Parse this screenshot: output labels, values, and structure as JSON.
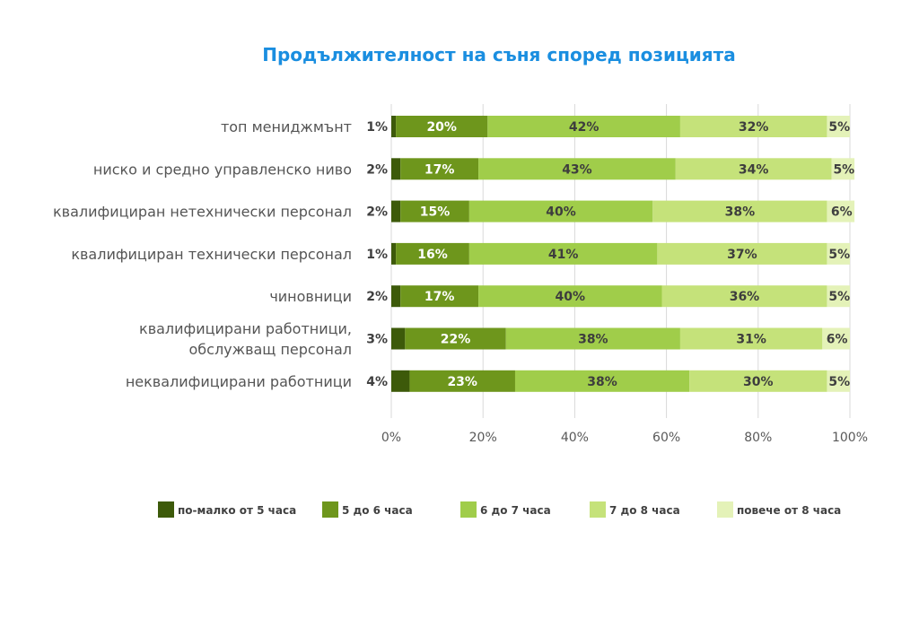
{
  "chart_data": {
    "type": "bar",
    "orientation": "horizontal",
    "stacked": true,
    "title": "Продължителност на съня според позицията",
    "categories": [
      [
        "топ мениджмънт"
      ],
      [
        "ниско и средно управленско ниво"
      ],
      [
        "квалифициран нетехнически персонал"
      ],
      [
        "квалифициран технически персонал"
      ],
      [
        "чиновници"
      ],
      [
        "квалифицирани работници,",
        "обслужващ персонал"
      ],
      [
        "неквалифицирани работници"
      ]
    ],
    "series": [
      {
        "name": "по-малко от 5 часа",
        "color": "#3d5a0a",
        "values": [
          1,
          2,
          2,
          1,
          2,
          3,
          4
        ],
        "labels": [
          "1%",
          "2%",
          "2%",
          "1%",
          "2%",
          "3%",
          "4%"
        ]
      },
      {
        "name": "5 до 6 часа",
        "color": "#6e961c",
        "values": [
          20,
          17,
          15,
          16,
          17,
          22,
          23
        ],
        "labels": [
          "20%",
          "17%",
          "15%",
          "16%",
          "17%",
          "22%",
          "23%"
        ]
      },
      {
        "name": "6 до 7 часа",
        "color": "#a0cd4a",
        "values": [
          42,
          43,
          40,
          41,
          40,
          38,
          38
        ],
        "labels": [
          "42%",
          "43%",
          "40%",
          "41%",
          "40%",
          "38%",
          "38%"
        ]
      },
      {
        "name": "7 до 8 часа",
        "color": "#c5e27a",
        "values": [
          32,
          34,
          38,
          37,
          36,
          31,
          30
        ],
        "labels": [
          "32%",
          "34%",
          "38%",
          "37%",
          "36%",
          "31%",
          "30%"
        ]
      },
      {
        "name": "повече от 8 часа",
        "color": "#e4f2b8",
        "values": [
          5,
          5,
          6,
          5,
          5,
          6,
          5
        ],
        "labels": [
          "5%",
          "5%",
          "6%",
          "5%",
          "5%",
          "6%",
          "5%"
        ]
      }
    ],
    "xlim": [
      0,
      100
    ],
    "xticks": [
      "0%",
      "20%",
      "40%",
      "60%",
      "80%",
      "100%"
    ],
    "grid": true,
    "legend": "bottom"
  }
}
